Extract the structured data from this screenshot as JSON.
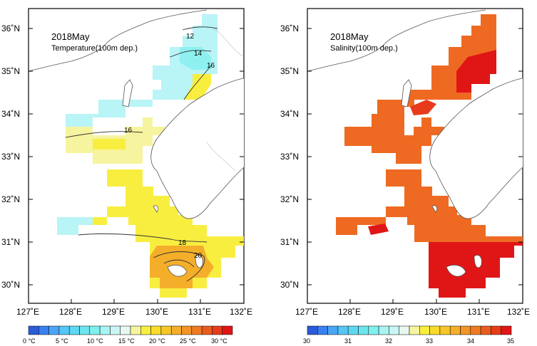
{
  "maps": [
    {
      "id": "temperature",
      "title": "2018May",
      "subtitle": "Temperature(100m dep.)",
      "contour_labels": [
        "12",
        "14",
        "16",
        "16",
        "18",
        "20"
      ],
      "colorbar_labels": [
        "0 °C",
        "5 °C",
        "10 °C",
        "15 °C",
        "20 °C",
        "25 °C",
        "30 °C"
      ],
      "colorbar_colors": [
        "#2a5bd8",
        "#3b7ff0",
        "#4aa6f5",
        "#55c6f5",
        "#5ed8f2",
        "#6be6ee",
        "#7ff0ee",
        "#a8f4f2",
        "#c9f6f4",
        "#e8f8f0",
        "#f6f49e",
        "#f8ee40",
        "#f8dc2a",
        "#f6c628",
        "#f4ae2a",
        "#f29426",
        "#ee7a22",
        "#ea5c1e",
        "#e63c1a",
        "#e01616"
      ],
      "colorbar_min": 0,
      "colorbar_max": 32
    },
    {
      "id": "salinity",
      "title": "2018May",
      "subtitle": "Salinity(100m dep.)",
      "contour_labels": [],
      "colorbar_labels": [
        "30",
        "31",
        "32",
        "33",
        "34",
        "35"
      ],
      "colorbar_colors": [
        "#2a5bd8",
        "#3b7ff0",
        "#4aa6f5",
        "#55c6f5",
        "#5ed8f2",
        "#6be6ee",
        "#7ff0ee",
        "#a8f4f2",
        "#c9f6f4",
        "#e8f8f0",
        "#f6f49e",
        "#f8ee40",
        "#f8dc2a",
        "#f6c628",
        "#f4ae2a",
        "#f29426",
        "#ee7a22",
        "#ea5c1e",
        "#e63c1a",
        "#e01616"
      ],
      "colorbar_min": 30,
      "colorbar_max": 35
    }
  ],
  "axes": {
    "lon_labels": [
      "127˚E",
      "128˚E",
      "129˚E",
      "130˚E",
      "131˚E",
      "132˚E"
    ],
    "lat_labels": [
      "36˚N",
      "35˚N",
      "34˚N",
      "33˚N",
      "32˚N",
      "31˚N",
      "30˚N"
    ]
  },
  "colors": {
    "temp_cold": "#8ff0f0",
    "temp_cyan": "#b9f4f6",
    "temp_yellow": "#f8ee40",
    "temp_lightyellow": "#f6f49e",
    "temp_orange": "#f4ae2a",
    "sal_orange": "#ee6a22",
    "sal_red": "#e83a1c",
    "sal_deepred": "#e01616"
  }
}
